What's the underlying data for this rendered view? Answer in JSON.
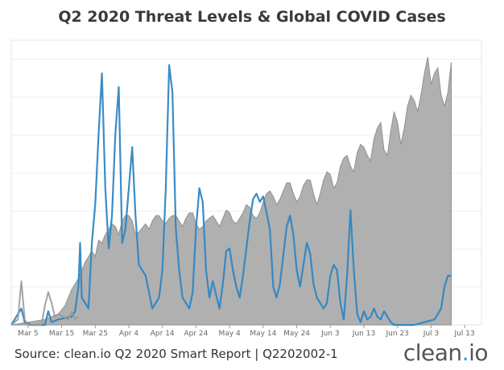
{
  "title": "Q2 2020 Threat Levels & Global COVID Cases",
  "source": "Source: clean.io Q2 2020 Smart Report | Q2202002-1",
  "brand": {
    "name": "clean",
    "dot": ".",
    "suffix": "io"
  },
  "chart_data": {
    "type": "area",
    "title": "Q2 2020 Threat Levels & Global COVID Cases",
    "xlabel": "",
    "ylabel": "",
    "ylim": [
      0,
      100
    ],
    "x_ticks": [
      "Mar 5",
      "Mar 15",
      "Mar 25",
      "Apr 4",
      "Apr 14",
      "Apr 24",
      "May 4",
      "May 14",
      "May 24",
      "Jun 3",
      "Jun 13",
      "Jun 23",
      "Jul 3",
      "Jul 13"
    ],
    "x_start_day": 0,
    "tick_spacing_days": 10,
    "first_tick_day": 5,
    "grid": true,
    "series": [
      {
        "kind": "area",
        "color": "#a9a9a9",
        "points": [
          [
            0,
            0
          ],
          [
            10,
            2
          ],
          [
            14,
            4
          ],
          [
            16,
            7
          ],
          [
            18,
            13
          ],
          [
            20,
            17
          ],
          [
            22,
            23
          ],
          [
            24,
            27
          ],
          [
            25,
            25
          ],
          [
            26,
            31
          ],
          [
            27,
            30
          ],
          [
            28,
            33
          ],
          [
            29,
            35
          ],
          [
            30,
            37
          ],
          [
            31,
            36
          ],
          [
            32,
            33
          ],
          [
            33,
            38
          ],
          [
            34,
            40
          ],
          [
            35,
            40
          ],
          [
            36,
            38
          ],
          [
            37,
            33
          ],
          [
            38,
            34
          ],
          [
            40,
            37
          ],
          [
            41,
            35
          ],
          [
            42,
            38
          ],
          [
            43,
            40
          ],
          [
            44,
            40
          ],
          [
            45,
            38
          ],
          [
            46,
            37
          ],
          [
            47,
            39
          ],
          [
            48,
            40
          ],
          [
            49,
            40
          ],
          [
            50,
            38
          ],
          [
            51,
            36
          ],
          [
            52,
            39
          ],
          [
            53,
            41
          ],
          [
            54,
            41
          ],
          [
            55,
            37
          ],
          [
            56,
            35
          ],
          [
            57,
            36
          ],
          [
            58,
            38
          ],
          [
            59,
            39
          ],
          [
            60,
            40
          ],
          [
            61,
            38
          ],
          [
            62,
            36
          ],
          [
            63,
            39
          ],
          [
            64,
            42
          ],
          [
            65,
            41
          ],
          [
            66,
            38
          ],
          [
            67,
            37
          ],
          [
            68,
            39
          ],
          [
            69,
            41
          ],
          [
            70,
            44
          ],
          [
            71,
            43
          ],
          [
            72,
            40
          ],
          [
            73,
            39
          ],
          [
            74,
            41
          ],
          [
            75,
            45
          ],
          [
            76,
            48
          ],
          [
            77,
            49
          ],
          [
            78,
            47
          ],
          [
            79,
            44
          ],
          [
            80,
            46
          ],
          [
            81,
            49
          ],
          [
            82,
            52
          ],
          [
            83,
            52
          ],
          [
            84,
            48
          ],
          [
            85,
            45
          ],
          [
            86,
            47
          ],
          [
            87,
            51
          ],
          [
            88,
            53
          ],
          [
            89,
            53
          ],
          [
            90,
            48
          ],
          [
            91,
            44
          ],
          [
            92,
            48
          ],
          [
            93,
            53
          ],
          [
            94,
            56
          ],
          [
            95,
            55
          ],
          [
            96,
            50
          ],
          [
            97,
            52
          ],
          [
            98,
            58
          ],
          [
            99,
            61
          ],
          [
            100,
            62
          ],
          [
            101,
            58
          ],
          [
            102,
            56
          ],
          [
            103,
            63
          ],
          [
            104,
            66
          ],
          [
            105,
            65
          ],
          [
            106,
            62
          ],
          [
            107,
            60
          ],
          [
            108,
            68
          ],
          [
            109,
            72
          ],
          [
            110,
            74
          ],
          [
            111,
            64
          ],
          [
            112,
            62
          ],
          [
            113,
            71
          ],
          [
            114,
            78
          ],
          [
            115,
            74
          ],
          [
            116,
            66
          ],
          [
            117,
            72
          ],
          [
            118,
            80
          ],
          [
            119,
            84
          ],
          [
            120,
            82
          ],
          [
            121,
            78
          ],
          [
            122,
            84
          ],
          [
            123,
            92
          ],
          [
            124,
            98
          ],
          [
            125,
            88
          ],
          [
            126,
            92
          ],
          [
            127,
            94
          ],
          [
            128,
            84
          ],
          [
            129,
            80
          ],
          [
            130,
            85
          ],
          [
            131,
            96
          ]
        ]
      },
      {
        "kind": "line",
        "color": "#2f86c3",
        "points": [
          [
            0,
            0
          ],
          [
            3,
            6
          ],
          [
            4,
            1
          ],
          [
            6,
            0
          ],
          [
            10,
            0
          ],
          [
            11,
            5
          ],
          [
            12,
            1
          ],
          [
            14,
            2
          ],
          [
            18,
            3
          ],
          [
            19,
            5
          ],
          [
            20,
            14
          ],
          [
            20.5,
            30
          ],
          [
            21,
            10
          ],
          [
            22,
            8
          ],
          [
            23,
            6
          ],
          [
            24,
            30
          ],
          [
            25,
            44
          ],
          [
            26,
            70
          ],
          [
            27,
            92
          ],
          [
            28,
            50
          ],
          [
            29,
            28
          ],
          [
            30,
            40
          ],
          [
            31,
            70
          ],
          [
            32,
            87
          ],
          [
            33,
            30
          ],
          [
            34,
            35
          ],
          [
            35,
            50
          ],
          [
            36,
            65
          ],
          [
            37,
            40
          ],
          [
            38,
            22
          ],
          [
            40,
            18
          ],
          [
            42,
            6
          ],
          [
            44,
            10
          ],
          [
            45,
            20
          ],
          [
            46,
            50
          ],
          [
            47,
            95
          ],
          [
            48,
            85
          ],
          [
            49,
            35
          ],
          [
            50,
            20
          ],
          [
            51,
            10
          ],
          [
            53,
            6
          ],
          [
            54,
            12
          ],
          [
            55,
            35
          ],
          [
            56,
            50
          ],
          [
            57,
            45
          ],
          [
            58,
            20
          ],
          [
            59,
            10
          ],
          [
            60,
            16
          ],
          [
            62,
            6
          ],
          [
            63,
            15
          ],
          [
            64,
            27
          ],
          [
            65,
            28
          ],
          [
            66,
            20
          ],
          [
            67,
            14
          ],
          [
            68,
            10
          ],
          [
            69,
            18
          ],
          [
            70,
            28
          ],
          [
            71,
            38
          ],
          [
            72,
            46
          ],
          [
            73,
            48
          ],
          [
            74,
            45
          ],
          [
            75,
            47
          ],
          [
            77,
            35
          ],
          [
            78,
            14
          ],
          [
            79,
            10
          ],
          [
            80,
            15
          ],
          [
            82,
            36
          ],
          [
            83,
            40
          ],
          [
            84,
            33
          ],
          [
            85,
            20
          ],
          [
            86,
            14
          ],
          [
            87,
            22
          ],
          [
            88,
            30
          ],
          [
            89,
            26
          ],
          [
            90,
            15
          ],
          [
            91,
            10
          ],
          [
            92,
            8
          ],
          [
            93,
            6
          ],
          [
            94,
            8
          ],
          [
            95,
            18
          ],
          [
            96,
            22
          ],
          [
            97,
            20
          ],
          [
            98,
            8
          ],
          [
            99,
            2
          ],
          [
            100,
            18
          ],
          [
            101,
            42
          ],
          [
            102,
            20
          ],
          [
            103,
            4
          ],
          [
            104,
            1
          ],
          [
            105,
            5
          ],
          [
            106,
            2
          ],
          [
            107,
            3
          ],
          [
            108,
            6
          ],
          [
            109,
            3
          ],
          [
            110,
            2
          ],
          [
            111,
            5
          ],
          [
            112,
            3
          ],
          [
            113,
            1
          ],
          [
            114,
            0
          ],
          [
            117,
            0
          ],
          [
            120,
            0
          ],
          [
            123,
            1
          ],
          [
            126,
            2
          ],
          [
            128,
            6
          ],
          [
            129,
            14
          ],
          [
            130,
            18
          ],
          [
            131,
            18
          ]
        ]
      },
      {
        "kind": "line",
        "color": "#9a9a9a",
        "points": [
          [
            0,
            0
          ],
          [
            2,
            2
          ],
          [
            3,
            16
          ],
          [
            4,
            2
          ],
          [
            5,
            0
          ],
          [
            9,
            0
          ],
          [
            10,
            7
          ],
          [
            11,
            12
          ],
          [
            12,
            8
          ],
          [
            13,
            3
          ],
          [
            14,
            4
          ],
          [
            17,
            2
          ],
          [
            18,
            5
          ],
          [
            19,
            2
          ],
          [
            20,
            3
          ]
        ]
      }
    ]
  }
}
